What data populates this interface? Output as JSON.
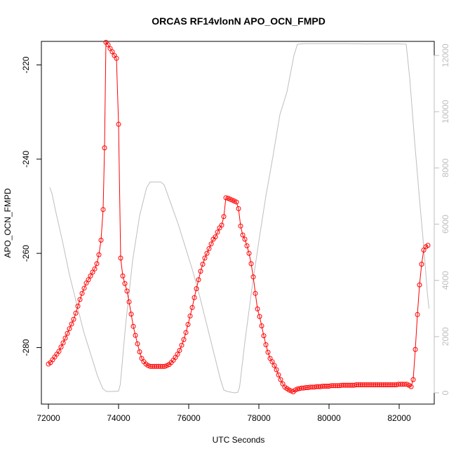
{
  "chart_data": {
    "type": "line",
    "title": "ORCAS RF14vlonN APO_OCN_FMPD",
    "xlabel": "UTC Seconds",
    "ylabel": "APO_OCN_FMPD",
    "xlim": [
      71800,
      83000
    ],
    "ylim": [
      -292,
      -215
    ],
    "y2lim": [
      -400,
      12500
    ],
    "x_ticks": [
      72000,
      74000,
      76000,
      78000,
      80000,
      82000
    ],
    "y_ticks": [
      -280,
      -260,
      -240,
      -220
    ],
    "y2_ticks": [
      0,
      2000,
      4000,
      6000,
      8000,
      10000,
      12000
    ],
    "grid": false,
    "legend": "none",
    "colors": {
      "primary": "#ff0000",
      "secondary": "#bebebe"
    },
    "series": [
      {
        "role": "primary",
        "axis": "left",
        "style": "line+points",
        "points": [
          [
            72000,
            -283.5
          ],
          [
            72060,
            -283.2
          ],
          [
            72120,
            -282.6
          ],
          [
            72180,
            -282.0
          ],
          [
            72240,
            -281.4
          ],
          [
            72300,
            -280.8
          ],
          [
            72360,
            -279.9
          ],
          [
            72420,
            -279.0
          ],
          [
            72480,
            -278.0
          ],
          [
            72540,
            -277.0
          ],
          [
            72600,
            -276.0
          ],
          [
            72660,
            -275.0
          ],
          [
            72720,
            -274.0
          ],
          [
            72780,
            -272.7
          ],
          [
            72840,
            -271.2
          ],
          [
            72900,
            -269.8
          ],
          [
            72960,
            -268.5
          ],
          [
            73020,
            -267.4
          ],
          [
            73080,
            -266.3
          ],
          [
            73140,
            -265.6
          ],
          [
            73200,
            -264.8
          ],
          [
            73260,
            -264.0
          ],
          [
            73320,
            -263.3
          ],
          [
            73380,
            -262.2
          ],
          [
            73440,
            -260.3
          ],
          [
            73500,
            -257.2
          ],
          [
            73560,
            -250.7
          ],
          [
            73600,
            -237.6
          ],
          [
            73640,
            -215.2
          ],
          [
            73700,
            -215.7
          ],
          [
            73760,
            -216.5
          ],
          [
            73820,
            -217.2
          ],
          [
            73880,
            -218.0
          ],
          [
            73940,
            -218.6
          ],
          [
            74000,
            -232.6
          ],
          [
            74060,
            -261.0
          ],
          [
            74120,
            -264.8
          ],
          [
            74180,
            -266.4
          ],
          [
            74240,
            -268.0
          ],
          [
            74300,
            -270.3
          ],
          [
            74360,
            -272.9
          ],
          [
            74420,
            -275.5
          ],
          [
            74480,
            -277.4
          ],
          [
            74540,
            -279.2
          ],
          [
            74600,
            -280.9
          ],
          [
            74660,
            -282.3
          ],
          [
            74720,
            -283.0
          ],
          [
            74780,
            -283.5
          ],
          [
            74840,
            -283.8
          ],
          [
            74900,
            -284.0
          ],
          [
            74960,
            -284.0
          ],
          [
            75020,
            -284.0
          ],
          [
            75080,
            -284.0
          ],
          [
            75140,
            -284.0
          ],
          [
            75200,
            -284.0
          ],
          [
            75260,
            -284.0
          ],
          [
            75320,
            -284.0
          ],
          [
            75380,
            -283.8
          ],
          [
            75440,
            -283.6
          ],
          [
            75500,
            -283.2
          ],
          [
            75560,
            -282.7
          ],
          [
            75620,
            -282.1
          ],
          [
            75680,
            -281.4
          ],
          [
            75740,
            -280.6
          ],
          [
            75800,
            -279.5
          ],
          [
            75860,
            -278.3
          ],
          [
            75920,
            -276.8
          ],
          [
            75980,
            -275.1
          ],
          [
            76040,
            -273.3
          ],
          [
            76100,
            -271.5
          ],
          [
            76160,
            -269.4
          ],
          [
            76220,
            -267.5
          ],
          [
            76280,
            -265.6
          ],
          [
            76340,
            -263.8
          ],
          [
            76400,
            -262.3
          ],
          [
            76460,
            -261.0
          ],
          [
            76520,
            -260.0
          ],
          [
            76580,
            -259.0
          ],
          [
            76640,
            -258.0
          ],
          [
            76700,
            -257.0
          ],
          [
            76760,
            -256.5
          ],
          [
            76820,
            -255.5
          ],
          [
            76880,
            -254.6
          ],
          [
            76940,
            -254.0
          ],
          [
            77000,
            -252.2
          ],
          [
            77060,
            -248.2
          ],
          [
            77120,
            -248.3
          ],
          [
            77180,
            -248.5
          ],
          [
            77240,
            -248.7
          ],
          [
            77300,
            -248.9
          ],
          [
            77360,
            -249.1
          ],
          [
            77420,
            -250.5
          ],
          [
            77480,
            -254.2
          ],
          [
            77540,
            -256.1
          ],
          [
            77600,
            -257.0
          ],
          [
            77660,
            -258.4
          ],
          [
            77720,
            -260.0
          ],
          [
            77780,
            -262.2
          ],
          [
            77840,
            -265.0
          ],
          [
            77900,
            -268.5
          ],
          [
            77960,
            -271.8
          ],
          [
            78020,
            -273.4
          ],
          [
            78080,
            -275.4
          ],
          [
            78140,
            -277.5
          ],
          [
            78200,
            -279.4
          ],
          [
            78260,
            -281.0
          ],
          [
            78320,
            -282.3
          ],
          [
            78380,
            -283.0
          ],
          [
            78440,
            -283.8
          ],
          [
            78500,
            -284.7
          ],
          [
            78560,
            -285.8
          ],
          [
            78620,
            -286.8
          ],
          [
            78680,
            -287.7
          ],
          [
            78740,
            -288.4
          ],
          [
            78800,
            -288.7
          ],
          [
            78860,
            -289.0
          ],
          [
            78920,
            -289.2
          ],
          [
            78980,
            -289.4
          ],
          [
            79040,
            -289.0
          ],
          [
            79100,
            -288.8
          ],
          [
            79160,
            -288.7
          ],
          [
            79220,
            -288.6
          ],
          [
            79280,
            -288.6
          ],
          [
            79340,
            -288.5
          ],
          [
            79400,
            -288.5
          ],
          [
            79460,
            -288.4
          ],
          [
            79520,
            -288.4
          ],
          [
            79580,
            -288.4
          ],
          [
            79640,
            -288.3
          ],
          [
            79700,
            -288.3
          ],
          [
            79760,
            -288.3
          ],
          [
            79820,
            -288.2
          ],
          [
            79880,
            -288.2
          ],
          [
            79940,
            -288.2
          ],
          [
            80000,
            -288.2
          ],
          [
            80060,
            -288.1
          ],
          [
            80120,
            -288.1
          ],
          [
            80180,
            -288.1
          ],
          [
            80240,
            -288.1
          ],
          [
            80300,
            -288.1
          ],
          [
            80360,
            -288.0
          ],
          [
            80420,
            -288.0
          ],
          [
            80480,
            -288.0
          ],
          [
            80540,
            -288.0
          ],
          [
            80600,
            -288.0
          ],
          [
            80660,
            -288.0
          ],
          [
            80720,
            -288.0
          ],
          [
            80780,
            -287.9
          ],
          [
            80840,
            -287.9
          ],
          [
            80900,
            -287.9
          ],
          [
            80960,
            -287.9
          ],
          [
            81020,
            -287.9
          ],
          [
            81080,
            -287.9
          ],
          [
            81140,
            -287.9
          ],
          [
            81200,
            -287.9
          ],
          [
            81260,
            -287.9
          ],
          [
            81320,
            -287.9
          ],
          [
            81380,
            -287.9
          ],
          [
            81440,
            -287.9
          ],
          [
            81500,
            -287.9
          ],
          [
            81560,
            -287.9
          ],
          [
            81620,
            -287.9
          ],
          [
            81680,
            -287.9
          ],
          [
            81740,
            -287.9
          ],
          [
            81800,
            -287.9
          ],
          [
            81860,
            -287.9
          ],
          [
            81920,
            -287.9
          ],
          [
            81980,
            -287.8
          ],
          [
            82040,
            -287.8
          ],
          [
            82100,
            -287.8
          ],
          [
            82160,
            -287.8
          ],
          [
            82220,
            -287.8
          ],
          [
            82280,
            -288.0
          ],
          [
            82340,
            -288.3
          ],
          [
            82400,
            -286.8
          ],
          [
            82460,
            -280.4
          ],
          [
            82520,
            -273.0
          ],
          [
            82580,
            -266.7
          ],
          [
            82640,
            -262.3
          ],
          [
            82700,
            -259.3
          ],
          [
            82760,
            -258.6
          ],
          [
            82820,
            -258.3
          ]
        ]
      },
      {
        "role": "secondary",
        "axis": "right",
        "style": "line",
        "points": [
          [
            72040,
            7300
          ],
          [
            72100,
            7100
          ],
          [
            72200,
            6500
          ],
          [
            72400,
            5400
          ],
          [
            72600,
            4200
          ],
          [
            72800,
            3200
          ],
          [
            73000,
            2200
          ],
          [
            73200,
            1400
          ],
          [
            73400,
            600
          ],
          [
            73550,
            150
          ],
          [
            73650,
            50
          ],
          [
            73800,
            50
          ],
          [
            74000,
            60
          ],
          [
            74050,
            300
          ],
          [
            74200,
            2400
          ],
          [
            74400,
            4700
          ],
          [
            74600,
            6300
          ],
          [
            74800,
            7300
          ],
          [
            74900,
            7500
          ],
          [
            75000,
            7500
          ],
          [
            75200,
            7500
          ],
          [
            75300,
            7400
          ],
          [
            75500,
            6700
          ],
          [
            75700,
            6000
          ],
          [
            75900,
            5200
          ],
          [
            76100,
            4400
          ],
          [
            76300,
            3500
          ],
          [
            76500,
            2500
          ],
          [
            76700,
            1500
          ],
          [
            76900,
            500
          ],
          [
            77000,
            100
          ],
          [
            77100,
            50
          ],
          [
            77300,
            0
          ],
          [
            77400,
            20
          ],
          [
            77450,
            200
          ],
          [
            77600,
            1800
          ],
          [
            77800,
            3700
          ],
          [
            78000,
            5400
          ],
          [
            78200,
            7000
          ],
          [
            78400,
            8400
          ],
          [
            78600,
            9900
          ],
          [
            78800,
            10700
          ],
          [
            79000,
            12000
          ],
          [
            79100,
            12400
          ],
          [
            79300,
            12420
          ],
          [
            79600,
            12420
          ],
          [
            80000,
            12420
          ],
          [
            80500,
            12420
          ],
          [
            81000,
            12410
          ],
          [
            81500,
            12410
          ],
          [
            82000,
            12410
          ],
          [
            82200,
            12400
          ],
          [
            82300,
            11200
          ],
          [
            82450,
            8800
          ],
          [
            82600,
            6600
          ],
          [
            82700,
            5200
          ],
          [
            82800,
            3600
          ],
          [
            82850,
            3000
          ]
        ]
      }
    ]
  }
}
